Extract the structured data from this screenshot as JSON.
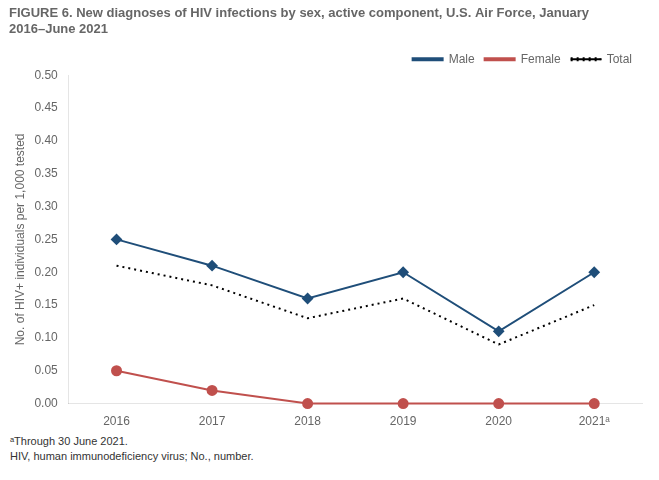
{
  "chart_data": {
    "type": "line",
    "title": "FIGURE 6. New diagnoses of HIV infections by sex, active component, U.S. Air Force, January 2016–June 2021",
    "ylabel": "No. of HIV+ individuals per 1,000 tested",
    "categories": [
      "2016",
      "2017",
      "2018",
      "2019",
      "2020",
      "2021ᵃ"
    ],
    "series": [
      {
        "name": "Male",
        "color": "#1f4e79",
        "marker": "diamond",
        "line_style": "solid",
        "values": [
          0.25,
          0.21,
          0.16,
          0.2,
          0.11,
          0.2
        ]
      },
      {
        "name": "Female",
        "color": "#c0504d",
        "marker": "circle",
        "line_style": "solid",
        "values": [
          0.05,
          0.02,
          0.0,
          0.0,
          0.0,
          0.0
        ]
      },
      {
        "name": "Total",
        "color": "#000000",
        "marker": "none",
        "line_style": "dotted",
        "values": [
          0.21,
          0.18,
          0.13,
          0.16,
          0.09,
          0.15
        ]
      }
    ],
    "ylim": [
      0,
      0.5
    ],
    "yticks": [
      {
        "value": 0.0,
        "label": "0.00"
      },
      {
        "value": 0.05,
        "label": "0.05"
      },
      {
        "value": 0.1,
        "label": "0.10"
      },
      {
        "value": 0.15,
        "label": "0.15"
      },
      {
        "value": 0.2,
        "label": "0.20"
      },
      {
        "value": 0.25,
        "label": "0.25"
      },
      {
        "value": 0.3,
        "label": "0.30"
      },
      {
        "value": 0.35,
        "label": "0.35"
      },
      {
        "value": 0.4,
        "label": "0.40"
      },
      {
        "value": 0.45,
        "label": "0.45"
      },
      {
        "value": 0.5,
        "label": "0.50"
      }
    ],
    "annotations": [
      "ᵃThrough 30 June 2021.",
      "HIV, human immunodeficiency virus; No., number."
    ],
    "grid": false,
    "legend": "upper right"
  }
}
